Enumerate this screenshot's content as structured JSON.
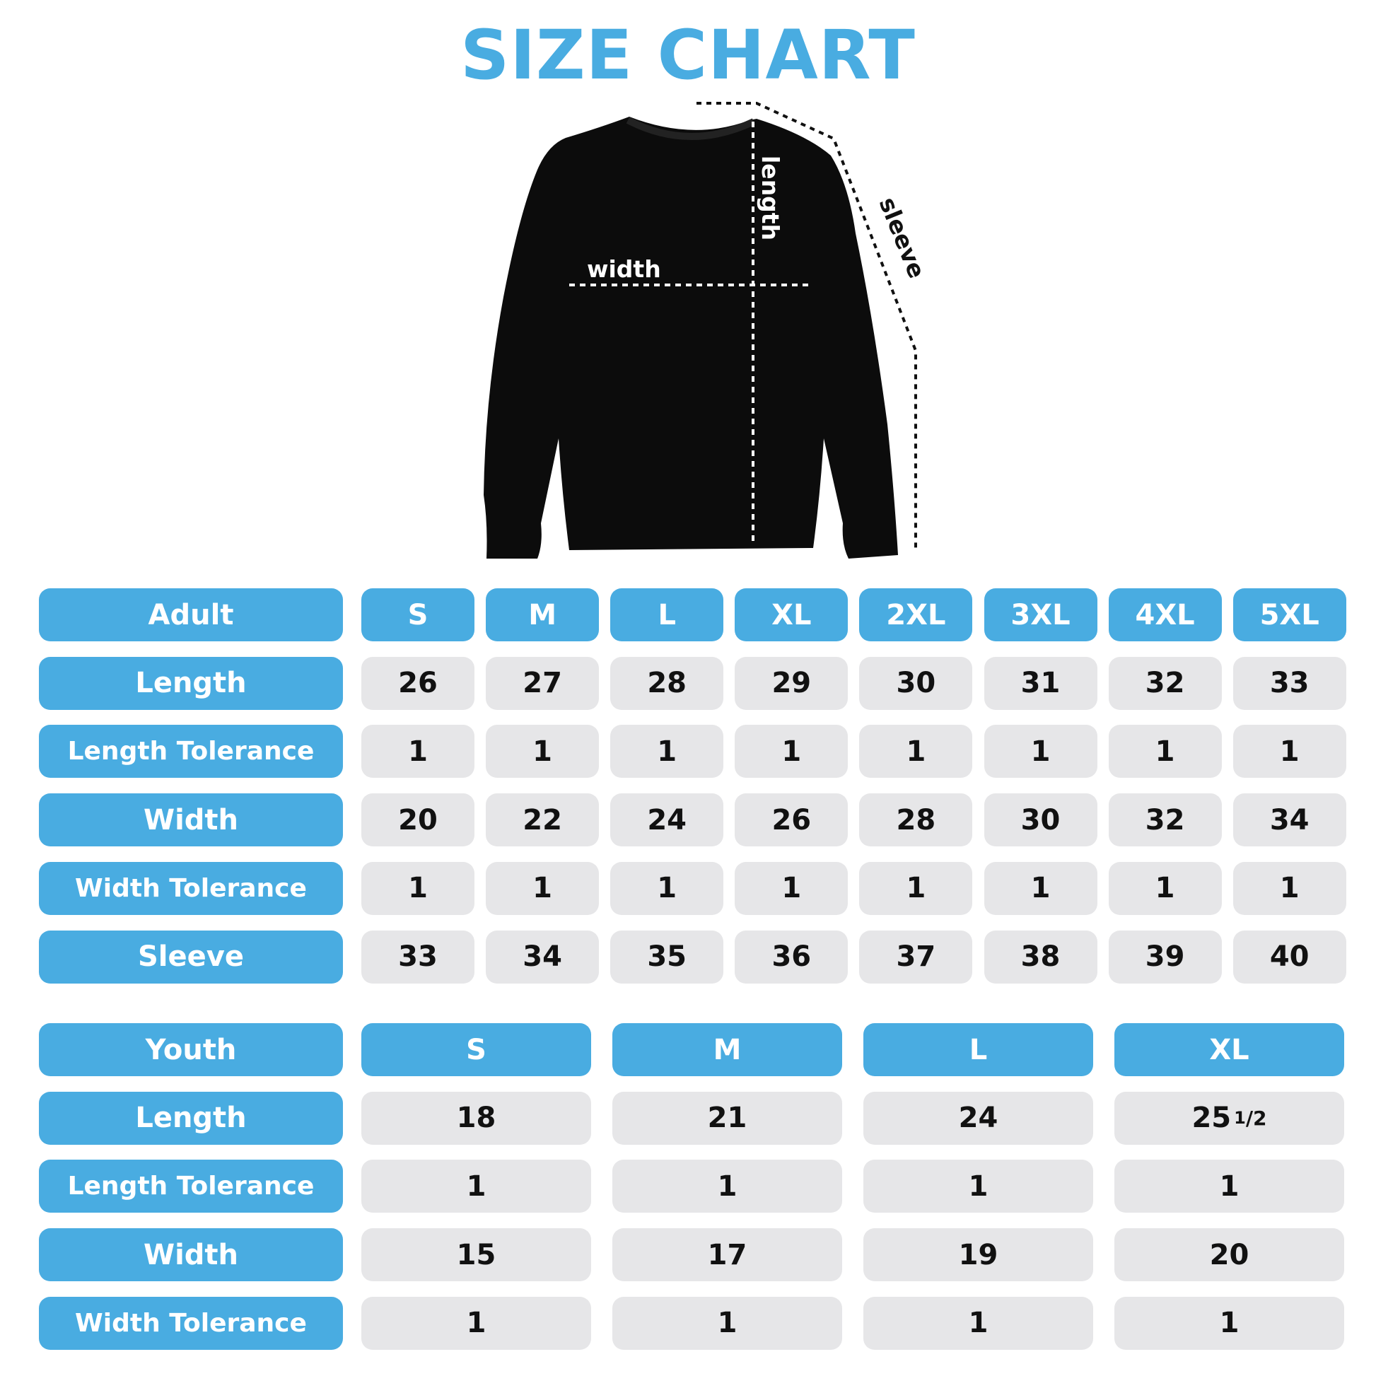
{
  "title": "SIZE CHART",
  "diagram": {
    "width_label": "width",
    "length_label": "length",
    "sleeve_label": "sleeve"
  },
  "colors": {
    "accent": "#49ace1",
    "cell": "#e6e6e8"
  },
  "adult": {
    "header": "Adult",
    "sizes": [
      "S",
      "M",
      "L",
      "XL",
      "2XL",
      "3XL",
      "4XL",
      "5XL"
    ],
    "rows": [
      {
        "label": "Length",
        "values": [
          "26",
          "27",
          "28",
          "29",
          "30",
          "31",
          "32",
          "33"
        ]
      },
      {
        "label": "Length Tolerance",
        "values": [
          "1",
          "1",
          "1",
          "1",
          "1",
          "1",
          "1",
          "1"
        ]
      },
      {
        "label": "Width",
        "values": [
          "20",
          "22",
          "24",
          "26",
          "28",
          "30",
          "32",
          "34"
        ]
      },
      {
        "label": "Width Tolerance",
        "values": [
          "1",
          "1",
          "1",
          "1",
          "1",
          "1",
          "1",
          "1"
        ]
      },
      {
        "label": "Sleeve",
        "values": [
          "33",
          "34",
          "35",
          "36",
          "37",
          "38",
          "39",
          "40"
        ]
      }
    ]
  },
  "youth": {
    "header": "Youth",
    "sizes": [
      "S",
      "M",
      "L",
      "XL"
    ],
    "rows": [
      {
        "label": "Length",
        "values": [
          "18",
          "21",
          "24",
          "25 1/2"
        ]
      },
      {
        "label": "Length Tolerance",
        "values": [
          "1",
          "1",
          "1",
          "1"
        ]
      },
      {
        "label": "Width",
        "values": [
          "15",
          "17",
          "19",
          "20"
        ]
      },
      {
        "label": "Width Tolerance",
        "values": [
          "1",
          "1",
          "1",
          "1"
        ]
      }
    ]
  }
}
